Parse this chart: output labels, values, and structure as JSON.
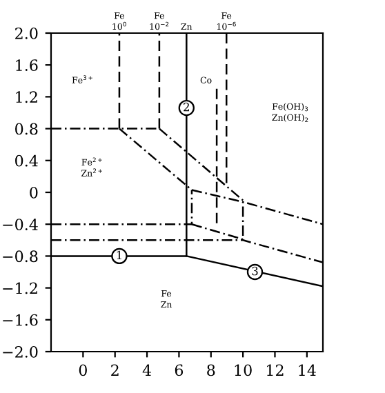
{
  "chart_data": {
    "type": "line",
    "grid": false,
    "legend": false,
    "marker": "none",
    "xlim": [
      -2,
      15
    ],
    "xticks": [
      0,
      2,
      4,
      6,
      8,
      10,
      12,
      14
    ],
    "ylim": [
      -2.0,
      2.0
    ],
    "yticks": [
      {
        "value": 2.0,
        "label": "2.0"
      },
      {
        "value": 1.6,
        "label": "1.6"
      },
      {
        "value": 1.2,
        "label": "1.2"
      },
      {
        "value": 0.8,
        "label": "0.8"
      },
      {
        "value": 0.4,
        "label": "0.4"
      },
      0,
      {
        "value": -0.4,
        "label": "−0.4"
      },
      {
        "value": -0.8,
        "label": "−0.8"
      },
      {
        "value": -1.2,
        "label": "−1.2"
      },
      {
        "value": -1.6,
        "label": "−1.6"
      },
      {
        "value": -2.0,
        "label": "−2.0"
      }
    ],
    "series": [
      {
        "color": "#000000",
        "line_style": "solid",
        "x": [
          -2,
          6.47,
          6.47
        ],
        "values": [
          -0.8,
          -0.8,
          2.0
        ]
      },
      {
        "color": "#000000",
        "line_style": "solid",
        "x": [
          6.47,
          15
        ],
        "values": [
          -0.8,
          -1.18
        ]
      },
      {
        "color": "#000000",
        "line_style": "dashdot",
        "x": [
          -2,
          2.27,
          4.77
        ],
        "values": [
          0.8,
          0.8,
          0.8
        ]
      },
      {
        "color": "#000000",
        "line_style": "dashed",
        "x": [
          2.27,
          2.27
        ],
        "values": [
          0.8,
          2.0
        ]
      },
      {
        "color": "#000000",
        "line_style": "dashed",
        "x": [
          4.77,
          4.77
        ],
        "values": [
          0.8,
          2.0
        ]
      },
      {
        "color": "#000000",
        "line_style": "dashdot",
        "x": [
          2.27,
          6.8
        ],
        "values": [
          0.8,
          0.03
        ]
      },
      {
        "color": "#000000",
        "line_style": "dashdot",
        "x": [
          4.77,
          10.0
        ],
        "values": [
          0.8,
          -0.1
        ]
      },
      {
        "color": "#000000",
        "line_style": "dashdot",
        "x": [
          6.8,
          10.0,
          15
        ],
        "values": [
          0.03,
          -0.12,
          -0.4
        ]
      },
      {
        "color": "#000000",
        "line_style": "dashdot",
        "x": [
          -2,
          6.8,
          6.8
        ],
        "values": [
          -0.4,
          -0.4,
          0.03
        ]
      },
      {
        "color": "#000000",
        "line_style": "dashdot",
        "x": [
          6.8,
          10.0,
          10.0
        ],
        "values": [
          -0.4,
          -0.59,
          -0.12
        ]
      },
      {
        "color": "#000000",
        "line_style": "dashdot",
        "x": [
          -2,
          10.0,
          15
        ],
        "values": [
          -0.6,
          -0.6,
          -0.88
        ]
      },
      {
        "color": "#000000",
        "line_style": "dashed",
        "x": [
          8.36,
          8.36
        ],
        "values": [
          1.3,
          -0.44
        ]
      },
      {
        "color": "#000000",
        "line_style": "dashed",
        "x": [
          8.97,
          8.97
        ],
        "values": [
          2.0,
          0.07
        ]
      }
    ],
    "annotations": [
      "Fe\n10$^{0}$",
      "Fe\n10$^{−2}$",
      "Zn",
      "Fe\n10$^{−6}$",
      "Fe$^{3+}$",
      "Fe$^{2+}$\nZn$^{2+}$",
      "Co",
      "Fe(OH)$_{3}$\nZn(OH)$_{2}$",
      "Fe\nZn",
      {
        "text": "1",
        "x": 2.27,
        "y": -0.8
      },
      {
        "text": "2",
        "x": 6.47,
        "y": 1.06
      },
      {
        "text": "3",
        "x": 10.75,
        "y": -1.0
      }
    ]
  }
}
